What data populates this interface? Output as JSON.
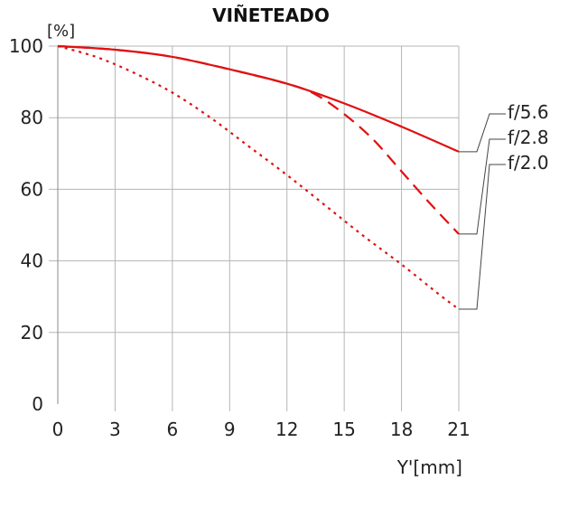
{
  "chart_data": {
    "type": "line",
    "title": "VIÑETEADO",
    "y_unit": "[%]",
    "xlabel": "Y'[mm]",
    "ylabel": "",
    "xlim": [
      0,
      21
    ],
    "ylim": [
      0,
      100
    ],
    "xticks": [
      0,
      3,
      6,
      9,
      12,
      15,
      18,
      21
    ],
    "yticks": [
      0,
      20,
      40,
      60,
      80,
      100
    ],
    "grid": true,
    "line_color": "#e01010",
    "series": [
      {
        "name": "f/5.6",
        "style": "solid",
        "x": [
          0,
          3,
          6,
          9,
          12,
          15,
          18,
          21
        ],
        "values": [
          100,
          99,
          97,
          93.5,
          89.5,
          84,
          77.5,
          70.5
        ]
      },
      {
        "name": "f/2.8",
        "style": "dashed",
        "x": [
          0,
          3,
          6,
          9,
          12,
          13.5,
          15,
          16.5,
          18,
          19.5,
          21
        ],
        "values": [
          100,
          99,
          97,
          93.5,
          89.5,
          86.5,
          81,
          74,
          65,
          56,
          47.5
        ]
      },
      {
        "name": "f/2.0",
        "style": "dotted",
        "x": [
          0,
          2,
          4,
          6,
          8,
          10,
          12,
          14,
          16,
          18,
          20,
          21
        ],
        "values": [
          100,
          97,
          92.5,
          87,
          80,
          72,
          64,
          55.5,
          47,
          39,
          30.5,
          26.5
        ]
      }
    ]
  }
}
